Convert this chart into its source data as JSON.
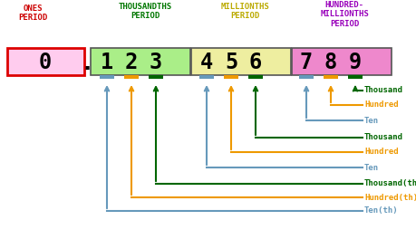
{
  "title_ones": "ONES\nPERIOD",
  "title_thousandths": "THOUSANDTHS\nPERIOD",
  "title_millionths": "MILLIONTHS\nPERIOD",
  "title_hundred_millionths": "HUNDRED-\nMILLIONTHS\nPERIOD",
  "box_colors": {
    "ones": "#ffccee",
    "thousandths": "#aaee88",
    "millionths": "#eeeea0",
    "hundred_millionths": "#ee88cc"
  },
  "box_border_ones": "#dd0000",
  "period_colors": {
    "ones": "#cc0000",
    "thousandths": "#007700",
    "millionths": "#bbaa00",
    "hundred_millionths": "#9900bb"
  },
  "arrow_blue": "#6699bb",
  "arrow_orange": "#ee9900",
  "arrow_green": "#006600",
  "labels_group1": [
    "Thousand",
    "Hundred",
    "Ten"
  ],
  "labels_group2": [
    "Thousand",
    "Hundred",
    "Ten"
  ],
  "labels_group3": [
    "Thousand(th)",
    "Hundred(th)",
    "Ten(th)"
  ],
  "fig_w": 4.59,
  "fig_h": 2.64,
  "dpi": 100
}
